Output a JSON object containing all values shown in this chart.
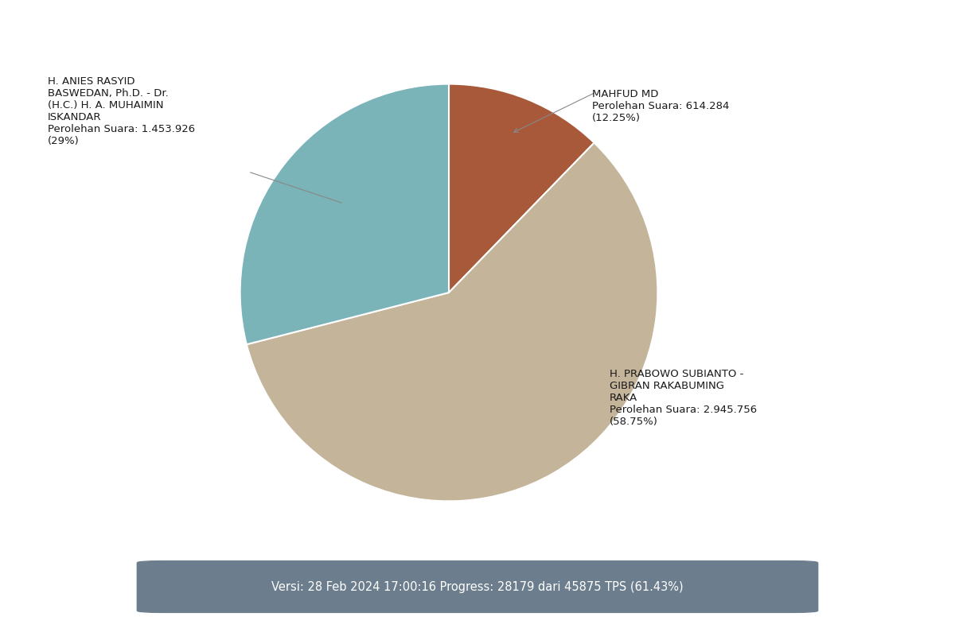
{
  "slices": [
    {
      "name": "MAHFUD MD",
      "pct": 12.25,
      "color": "#a8593a"
    },
    {
      "name": "PRABOWO",
      "pct": 58.75,
      "color": "#c4b49a"
    },
    {
      "name": "ANIES",
      "pct": 29.0,
      "color": "#7ab3b8"
    }
  ],
  "footer_text": "Versi: 28 Feb 2024 17:00:16 Progress: 28179 dari 45875 TPS (61.43%)",
  "footer_bg": "#6c7e8d",
  "footer_text_color": "#ffffff",
  "bg_color": "#ffffff",
  "annotation_mahfud_text": "MAHFUD MD\nPerolehan Suara: 614.284\n(12.25%)",
  "annotation_anies_text": "H. ANIES RASYID\nBASWEDAN, Ph.D. - Dr.\n(H.C.) H. A. MUHAIMIN\nISKANDAR\nPerolehan Suara: 1.453.926\n(29%)",
  "annotation_prabowo_text": "H. PRABOWO SUBIANTO -\nGIBRAN RAKABUMING\nRAKA\nPerolehan Suara: 2.945.756\n(58.75%)"
}
